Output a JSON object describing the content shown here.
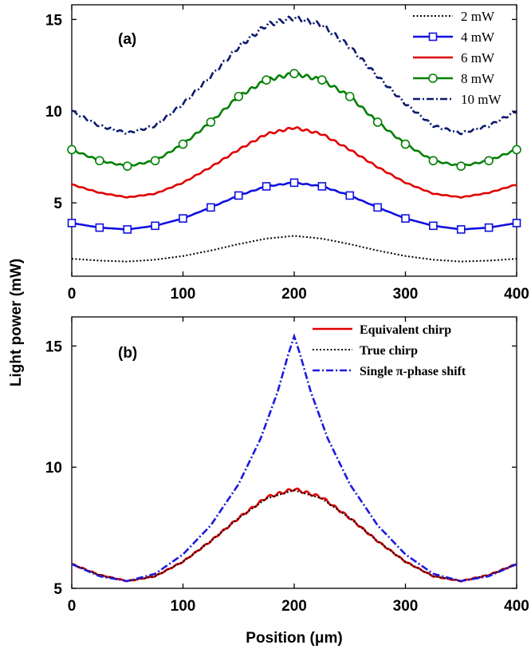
{
  "chart_data": [
    {
      "type": "line",
      "panel_label": "(a)",
      "xlim": [
        0,
        400
      ],
      "ylim": [
        1,
        15.8
      ],
      "xticks": [
        0,
        100,
        200,
        300,
        400
      ],
      "yticks": [
        5,
        10,
        15
      ],
      "legend_position": "top-right",
      "x": [
        0,
        25,
        50,
        75,
        100,
        125,
        150,
        175,
        200,
        225,
        250,
        275,
        300,
        325,
        350,
        375,
        400
      ],
      "series": [
        {
          "name": "2 mW",
          "color": "#000000",
          "style": "dotted",
          "marker": "none",
          "values": [
            1.95,
            1.85,
            1.8,
            1.9,
            2.1,
            2.4,
            2.75,
            3.05,
            3.2,
            3.05,
            2.75,
            2.4,
            2.1,
            1.9,
            1.8,
            1.85,
            1.95
          ]
        },
        {
          "name": "4 mW",
          "color": "#1010e0",
          "style": "solid",
          "marker": "square",
          "values": [
            3.9,
            3.65,
            3.55,
            3.75,
            4.15,
            4.75,
            5.4,
            5.9,
            6.1,
            5.9,
            5.4,
            4.75,
            4.15,
            3.75,
            3.55,
            3.65,
            3.9
          ]
        },
        {
          "name": "6 mW",
          "color": "#e00000",
          "style": "solid",
          "marker": "none",
          "values": [
            6.0,
            5.55,
            5.3,
            5.5,
            6.1,
            6.95,
            7.9,
            8.75,
            9.1,
            8.75,
            7.9,
            6.95,
            6.1,
            5.5,
            5.3,
            5.55,
            6.0
          ]
        },
        {
          "name": "8 mW",
          "color": "#008000",
          "style": "solid",
          "marker": "circle",
          "values": [
            7.9,
            7.3,
            7.0,
            7.3,
            8.2,
            9.4,
            10.8,
            11.7,
            12.05,
            11.7,
            10.8,
            9.4,
            8.2,
            7.3,
            7.0,
            7.3,
            7.9
          ]
        },
        {
          "name": "10 mW",
          "color": "#0a1a6e",
          "style": "dashdot",
          "marker": "none",
          "values": [
            10.0,
            9.2,
            8.8,
            9.2,
            10.4,
            11.9,
            13.5,
            14.7,
            15.1,
            14.7,
            13.5,
            11.9,
            10.4,
            9.2,
            8.8,
            9.2,
            10.0
          ]
        }
      ]
    },
    {
      "type": "line",
      "panel_label": "(b)",
      "xlim": [
        0,
        400
      ],
      "ylim": [
        5,
        16.2
      ],
      "xticks": [
        0,
        100,
        200,
        300,
        400
      ],
      "yticks": [
        5,
        10,
        15
      ],
      "xlabel": "Position (μm)",
      "legend_position": "top-right",
      "x": [
        0,
        25,
        50,
        75,
        100,
        125,
        150,
        175,
        200,
        225,
        250,
        275,
        300,
        325,
        350,
        375,
        400
      ],
      "series": [
        {
          "name": "Equivalent chirp",
          "color": "#e00000",
          "style": "solid",
          "values": [
            6.0,
            5.55,
            5.3,
            5.5,
            6.1,
            6.95,
            7.9,
            8.75,
            9.1,
            8.75,
            7.9,
            6.95,
            6.1,
            5.5,
            5.3,
            5.55,
            6.0
          ]
        },
        {
          "name": "True chirp",
          "color": "#000000",
          "style": "dotted",
          "values": [
            6.0,
            5.55,
            5.3,
            5.5,
            6.1,
            6.95,
            7.9,
            8.7,
            9.05,
            8.7,
            7.9,
            6.95,
            6.1,
            5.5,
            5.3,
            5.55,
            6.0
          ]
        },
        {
          "name": "Single π-phase shift",
          "color": "#1a1ae0",
          "style": "dashdot",
          "x": [
            0,
            25,
            50,
            75,
            100,
            125,
            150,
            170,
            185,
            195,
            200,
            205,
            215,
            230,
            250,
            275,
            300,
            325,
            350,
            375,
            400
          ],
          "values": [
            6.0,
            5.5,
            5.3,
            5.6,
            6.4,
            7.6,
            9.3,
            11.2,
            13.1,
            14.7,
            15.4,
            14.7,
            13.1,
            11.2,
            9.3,
            7.6,
            6.4,
            5.6,
            5.3,
            5.5,
            6.0
          ]
        }
      ]
    }
  ],
  "shared": {
    "ylabel": "Light power (mW)",
    "xlabel_top": "",
    "xlabel_bottom": "Position (μm)"
  }
}
